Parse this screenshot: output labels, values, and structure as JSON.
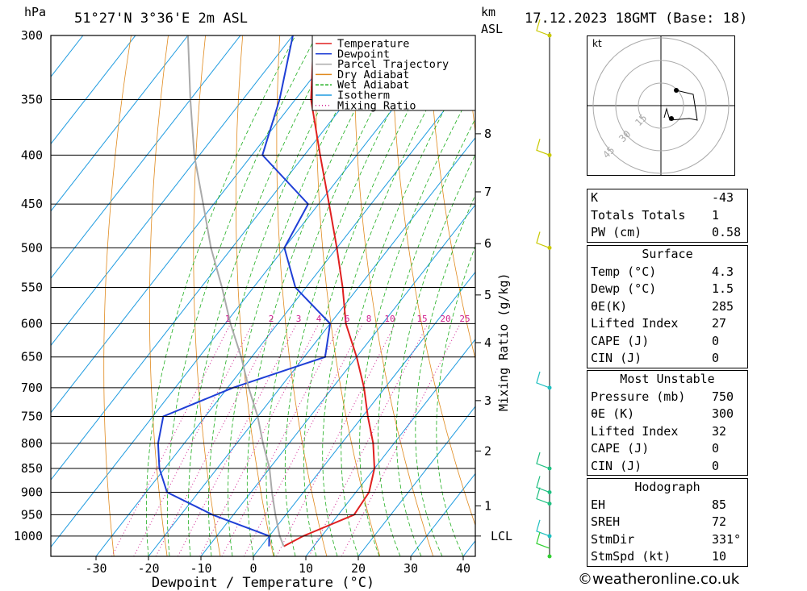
{
  "header": {
    "hpa": "hPa",
    "location": "51°27'N 3°36'E 2m ASL",
    "km": "km",
    "asl": "ASL",
    "datetime": "17.12.2023 18GMT (Base: 18)"
  },
  "footer": "©weatheronline.co.uk",
  "hodograph": {
    "unit": "kt",
    "ring_labels": [
      "15",
      "30",
      "45"
    ]
  },
  "xlabel": "Dewpoint / Temperature (°C)",
  "mixing_label": "Mixing Ratio (g/kg)",
  "legend": [
    {
      "name": "Temperature",
      "color": "#e02020",
      "style": "solid"
    },
    {
      "name": "Dewpoint",
      "color": "#1f3fd6",
      "style": "solid"
    },
    {
      "name": "Parcel Trajectory",
      "color": "#aaaaaa",
      "style": "solid"
    },
    {
      "name": "Dry Adiabat",
      "color": "#e08a1e",
      "style": "solid"
    },
    {
      "name": "Wet Adiabat",
      "color": "#1fae1f",
      "style": "dashed"
    },
    {
      "name": "Isotherm",
      "color": "#1e9be0",
      "style": "solid"
    },
    {
      "name": "Mixing Ratio",
      "color": "#d0208f",
      "style": "dotted"
    }
  ],
  "chart_data": {
    "type": "line",
    "title": "51°27'N 3°36'E 2m ASL",
    "xlabel": "Dewpoint / Temperature (°C)",
    "ylabel": "hPa",
    "x_ticks": [
      -30,
      -20,
      -10,
      0,
      10,
      20,
      30,
      40
    ],
    "pressure_levels": [
      300,
      350,
      400,
      450,
      500,
      550,
      600,
      650,
      700,
      750,
      800,
      850,
      900,
      950,
      1000
    ],
    "km_ticks": [
      {
        "km": "1",
        "p": 930
      },
      {
        "km": "2",
        "p": 815
      },
      {
        "km": "3",
        "p": 722
      },
      {
        "km": "4",
        "p": 628
      },
      {
        "km": "5",
        "p": 560
      },
      {
        "km": "6",
        "p": 495
      },
      {
        "km": "7",
        "p": 437
      },
      {
        "km": "8",
        "p": 380
      },
      {
        "km": "LCL",
        "p": 1000
      }
    ],
    "mixing_ratio_labels": [
      "1",
      "2",
      "3",
      "4",
      "6",
      "8",
      "10",
      "15",
      "20",
      "25"
    ],
    "series": [
      {
        "name": "Temperature",
        "points": [
          [
            1025,
            4.3
          ],
          [
            1000,
            6.5
          ],
          [
            950,
            13
          ],
          [
            900,
            12.5
          ],
          [
            850,
            10
          ],
          [
            800,
            6
          ],
          [
            750,
            1
          ],
          [
            700,
            -4
          ],
          [
            650,
            -10
          ],
          [
            600,
            -17
          ],
          [
            550,
            -23
          ],
          [
            500,
            -30
          ],
          [
            450,
            -38
          ],
          [
            400,
            -47
          ],
          [
            350,
            -57
          ],
          [
            300,
            -66
          ]
        ]
      },
      {
        "name": "Dewpoint",
        "points": [
          [
            1025,
            1.5
          ],
          [
            1000,
            0
          ],
          [
            950,
            -14
          ],
          [
            900,
            -26
          ],
          [
            850,
            -31
          ],
          [
            800,
            -35
          ],
          [
            750,
            -38
          ],
          [
            700,
            -29
          ],
          [
            650,
            -16
          ],
          [
            600,
            -20
          ],
          [
            550,
            -32
          ],
          [
            500,
            -40
          ],
          [
            450,
            -42
          ],
          [
            400,
            -58
          ],
          [
            350,
            -63
          ],
          [
            300,
            -70
          ]
        ]
      },
      {
        "name": "Parcel Trajectory",
        "points": [
          [
            1025,
            4.3
          ],
          [
            1000,
            2
          ],
          [
            950,
            -2
          ],
          [
            900,
            -6
          ],
          [
            850,
            -10
          ],
          [
            800,
            -15
          ],
          [
            750,
            -20
          ],
          [
            700,
            -26
          ],
          [
            650,
            -32
          ],
          [
            600,
            -39
          ],
          [
            550,
            -46
          ],
          [
            500,
            -54
          ],
          [
            450,
            -62
          ],
          [
            400,
            -71
          ],
          [
            350,
            -80
          ],
          [
            300,
            -90
          ]
        ]
      }
    ],
    "winds": [
      {
        "p": 300,
        "color": "#c8c800"
      },
      {
        "p": 400,
        "color": "#c8c800"
      },
      {
        "p": 500,
        "color": "#c8c800"
      },
      {
        "p": 700,
        "color": "#1fbfc0"
      },
      {
        "p": 850,
        "color": "#1fbf80"
      },
      {
        "p": 900,
        "color": "#1fbf80"
      },
      {
        "p": 925,
        "color": "#1fbf80"
      },
      {
        "p": 1000,
        "color": "#1fbfc0"
      },
      {
        "p": 1030,
        "color": "#30d030"
      }
    ]
  },
  "stability": {
    "rows": [
      {
        "label": "K",
        "value": "-43"
      },
      {
        "label": "Totals Totals",
        "value": "1"
      },
      {
        "label": "PW (cm)",
        "value": "0.58"
      }
    ]
  },
  "surface": {
    "title": "Surface",
    "rows": [
      {
        "label": "Temp (°C)",
        "value": "4.3"
      },
      {
        "label": "Dewp (°C)",
        "value": "1.5"
      },
      {
        "label": "θE(K)",
        "value": "285"
      },
      {
        "label": "Lifted Index",
        "value": "27"
      },
      {
        "label": "CAPE (J)",
        "value": "0"
      },
      {
        "label": "CIN (J)",
        "value": "0"
      }
    ]
  },
  "most_unstable": {
    "title": "Most Unstable",
    "rows": [
      {
        "label": "Pressure (mb)",
        "value": "750"
      },
      {
        "label": "θE (K)",
        "value": "300"
      },
      {
        "label": "Lifted Index",
        "value": "32"
      },
      {
        "label": "CAPE (J)",
        "value": "0"
      },
      {
        "label": "CIN (J)",
        "value": "0"
      }
    ]
  },
  "hodo_table": {
    "title": "Hodograph",
    "rows": [
      {
        "label": "EH",
        "value": "85"
      },
      {
        "label": "SREH",
        "value": "72"
      },
      {
        "label": "StmDir",
        "value": "331°"
      },
      {
        "label": "StmSpd (kt)",
        "value": "10"
      }
    ]
  }
}
